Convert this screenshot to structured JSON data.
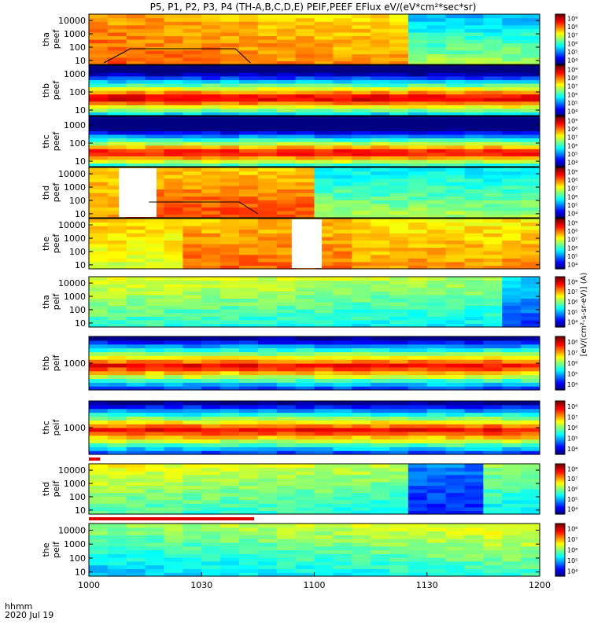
{
  "title": "P5, P1, P2, P3, P4 (TH-A,B,C,D,E) PEIF,PEEF EFlux eV/(eV*cm²*sec*sr)",
  "colorbar_label": "[eV/(cm²-s-sr-eV)] (A)",
  "chart_data": {
    "type": "heatmap",
    "title": "P5, P1, P2, P3, P4 (TH-A,B,C,D,E) PEIF,PEEF EFlux eV/(eV*cm²*sec*sr)",
    "x": {
      "label_line1": "hhmm",
      "label_line2": "2020 Jul 19",
      "range_minutes": [
        0,
        120
      ],
      "ticks": [
        {
          "label": "1000",
          "minute": 0
        },
        {
          "label": "1030",
          "minute": 30
        },
        {
          "label": "1100",
          "minute": 60
        },
        {
          "label": "1130",
          "minute": 90
        },
        {
          "label": "1200",
          "minute": 120
        }
      ]
    },
    "panels": [
      {
        "name": "tha-peef",
        "probe": "tha",
        "product": "peef",
        "ylabel1": "tha",
        "ylabel2": "peef",
        "yrange": [
          5,
          30000
        ],
        "yticks": [
          "10",
          "100",
          "1000",
          "10000"
        ],
        "cbar": [
          "10⁴",
          "10⁵",
          "10⁶",
          "10⁷",
          "10⁸",
          "10⁹"
        ],
        "pattern": "hot",
        "gaps": [],
        "line": true,
        "barsAbove": []
      },
      {
        "name": "thb-peef",
        "probe": "thb",
        "product": "peef",
        "ylabel1": "thb",
        "ylabel2": "peef",
        "yrange": [
          5,
          3000
        ],
        "yticks": [
          "10",
          "100",
          "1000"
        ],
        "cbar": [
          "10⁴",
          "10⁵",
          "10⁶",
          "10⁷",
          "10⁸",
          "10⁹"
        ],
        "pattern": "band",
        "gaps": [],
        "line": false,
        "barsAbove": []
      },
      {
        "name": "thc-peef",
        "probe": "thc",
        "product": "peef",
        "ylabel1": "thc",
        "ylabel2": "peef",
        "yrange": [
          5,
          3000
        ],
        "yticks": [
          "10",
          "100",
          "1000"
        ],
        "cbar": [
          "10⁴",
          "10⁵",
          "10⁶",
          "10⁷",
          "10⁸",
          "10⁹"
        ],
        "pattern": "bandlow",
        "gaps": [],
        "line": false,
        "barsAbove": []
      },
      {
        "name": "thd-peef",
        "probe": "thd",
        "product": "peef",
        "ylabel1": "thd",
        "ylabel2": "peef",
        "yrange": [
          5,
          30000
        ],
        "yticks": [
          "10",
          "100",
          "1000",
          "10000"
        ],
        "cbar": [
          "10⁴",
          "10⁵",
          "10⁶",
          "10⁷",
          "10⁸",
          "10⁹"
        ],
        "pattern": "hotd",
        "gaps": [
          [
            8,
            18
          ]
        ],
        "line": true,
        "barsAbove": []
      },
      {
        "name": "the-peef",
        "probe": "the",
        "product": "peef",
        "ylabel1": "the",
        "ylabel2": "peef",
        "yrange": [
          5,
          30000
        ],
        "yticks": [
          "10",
          "100",
          "1000",
          "10000"
        ],
        "cbar": [
          "10⁴",
          "10⁵",
          "10⁶",
          "10⁷",
          "10⁸",
          "10⁹"
        ],
        "pattern": "hote",
        "gaps": [
          [
            54,
            62
          ]
        ],
        "line": false,
        "barsAbove": []
      },
      {
        "name": "tha-peif",
        "probe": "tha",
        "product": "peif",
        "ylabel1": "tha",
        "ylabel2": "peif",
        "yrange": [
          5,
          30000
        ],
        "yticks": [
          "10",
          "100",
          "1000",
          "10000"
        ],
        "cbar": [
          "10⁴",
          "10⁵",
          "10⁶",
          "10⁷",
          "10⁸"
        ],
        "pattern": "ion",
        "gaps": [],
        "line": false,
        "barsAbove": []
      },
      {
        "name": "thb-peif",
        "probe": "thb",
        "product": "peif",
        "ylabel1": "thb",
        "ylabel2": "peif",
        "yrange": [
          50,
          20000
        ],
        "yticks": [
          "1000"
        ],
        "cbar": [
          "10⁴",
          "10⁵",
          "10⁶",
          "10⁷",
          "10⁸"
        ],
        "pattern": "ionband",
        "gaps": [],
        "line": false,
        "barsAbove": []
      },
      {
        "name": "thc-peif",
        "probe": "thc",
        "product": "peif",
        "ylabel1": "thc",
        "ylabel2": "peif",
        "yrange": [
          50,
          20000
        ],
        "yticks": [
          "1000"
        ],
        "cbar": [
          "10⁴",
          "10⁵",
          "10⁶",
          "10⁷",
          "10⁸"
        ],
        "pattern": "ionband",
        "gaps": [],
        "line": false,
        "barsAbove": []
      },
      {
        "name": "thd-peif",
        "probe": "thd",
        "product": "peif",
        "ylabel1": "thd",
        "ylabel2": "peif",
        "yrange": [
          5,
          30000
        ],
        "yticks": [
          "10",
          "100",
          "1000",
          "10000"
        ],
        "cbar": [
          "10⁴",
          "10⁵",
          "10⁶",
          "10⁷",
          "10⁸"
        ],
        "pattern": "iond",
        "gaps": [],
        "line": false,
        "barsAbove": [
          [
            0,
            3
          ]
        ]
      },
      {
        "name": "the-peif",
        "probe": "the",
        "product": "peif",
        "ylabel1": "the",
        "ylabel2": "peif",
        "yrange": [
          5,
          30000
        ],
        "yticks": [
          "10",
          "100",
          "1000",
          "10000"
        ],
        "cbar": [
          "10⁴",
          "10⁵",
          "10⁶",
          "10⁷",
          "10⁸"
        ],
        "pattern": "ione",
        "gaps": [],
        "line": false,
        "barsAbove": [
          [
            0,
            44
          ]
        ]
      }
    ]
  }
}
